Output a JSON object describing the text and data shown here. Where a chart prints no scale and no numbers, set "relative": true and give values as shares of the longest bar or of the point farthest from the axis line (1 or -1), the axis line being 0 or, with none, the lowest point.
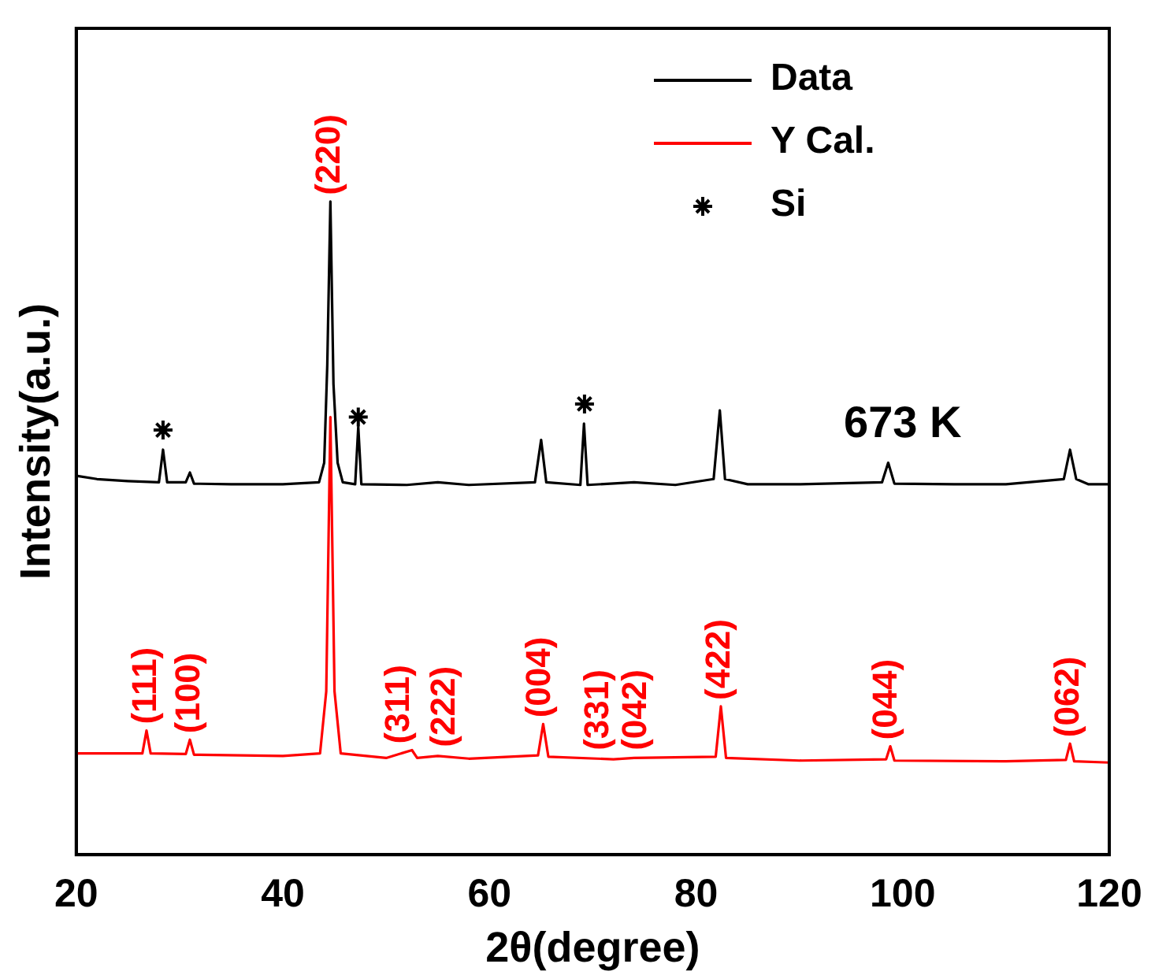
{
  "chart_data": {
    "type": "line",
    "relative": true,
    "xlabel": "2θ(degree)",
    "ylabel": "Intensity(a.u.)",
    "xlim": [
      20,
      120
    ],
    "xticks": [
      20,
      40,
      60,
      80,
      100,
      120
    ],
    "grid": false,
    "legend": "top right",
    "marker": "none",
    "line_style": "solid",
    "series": [
      {
        "name": "Data",
        "type": "line",
        "color": "#000000",
        "x": [
          20,
          22,
          25,
          28.0,
          28.4,
          28.8,
          30.6,
          31.0,
          31.4,
          35,
          40,
          43.5,
          44.0,
          44.3,
          44.6,
          44.9,
          45.3,
          45.8,
          47.0,
          47.3,
          47.6,
          52,
          55,
          58,
          64.4,
          65.0,
          65.5,
          68.8,
          69.15,
          69.5,
          74,
          78,
          81.7,
          82.3,
          82.8,
          85,
          90,
          98.0,
          98.6,
          99.2,
          105,
          110,
          115.6,
          116.2,
          116.8,
          118,
          120
        ],
        "values": [
          0.58,
          0.575,
          0.572,
          0.57,
          0.62,
          0.57,
          0.57,
          0.585,
          0.568,
          0.567,
          0.567,
          0.57,
          0.6,
          0.75,
          1.0,
          0.72,
          0.6,
          0.57,
          0.567,
          0.655,
          0.567,
          0.566,
          0.57,
          0.566,
          0.57,
          0.635,
          0.57,
          0.566,
          0.66,
          0.566,
          0.57,
          0.566,
          0.575,
          0.68,
          0.575,
          0.567,
          0.567,
          0.57,
          0.6,
          0.568,
          0.567,
          0.567,
          0.575,
          0.62,
          0.575,
          0.567,
          0.567
        ]
      },
      {
        "name": "Y Cal.",
        "type": "line",
        "color": "#ff0000",
        "x": [
          20,
          26.4,
          26.8,
          27.2,
          30.6,
          31.0,
          31.4,
          40,
          43.6,
          44.2,
          44.6,
          45.0,
          45.6,
          50,
          52.5,
          53,
          55,
          58,
          64.7,
          65.2,
          65.7,
          72,
          74,
          81.9,
          82.4,
          82.9,
          90,
          98.4,
          98.8,
          99.2,
          110,
          115.8,
          116.2,
          116.6,
          120
        ],
        "values": [
          0.155,
          0.155,
          0.19,
          0.155,
          0.154,
          0.176,
          0.153,
          0.151,
          0.155,
          0.25,
          0.67,
          0.25,
          0.155,
          0.148,
          0.16,
          0.148,
          0.151,
          0.147,
          0.152,
          0.2,
          0.15,
          0.146,
          0.148,
          0.15,
          0.227,
          0.148,
          0.144,
          0.146,
          0.166,
          0.144,
          0.143,
          0.145,
          0.17,
          0.143,
          0.141
        ]
      },
      {
        "name": "Si",
        "type": "scatter",
        "marker": "cross",
        "color": "#000000",
        "x": [
          28.4,
          47.3,
          69.2
        ],
        "values": [
          0.65,
          0.67,
          0.69
        ]
      }
    ],
    "annotations": [
      {
        "text": "(111)",
        "x": 26.8,
        "y": 0.19
      },
      {
        "text": "(100)",
        "x": 31.0,
        "y": 0.176
      },
      {
        "text": "(220)",
        "x": 44.6,
        "y": 1.0
      },
      {
        "text": "(311)",
        "x": 51.3,
        "y": 0.16
      },
      {
        "text": "(222)",
        "x": 55.7,
        "y": 0.155
      },
      {
        "text": "(004)",
        "x": 64.9,
        "y": 0.2
      },
      {
        "text": "(331)",
        "x": 70.6,
        "y": 0.15
      },
      {
        "text": "(042)",
        "x": 74.2,
        "y": 0.15
      },
      {
        "text": "(422)",
        "x": 82.3,
        "y": 0.227
      },
      {
        "text": "(044)",
        "x": 98.5,
        "y": 0.166
      },
      {
        "text": "(062)",
        "x": 116.1,
        "y": 0.17
      },
      "673 K"
    ]
  }
}
